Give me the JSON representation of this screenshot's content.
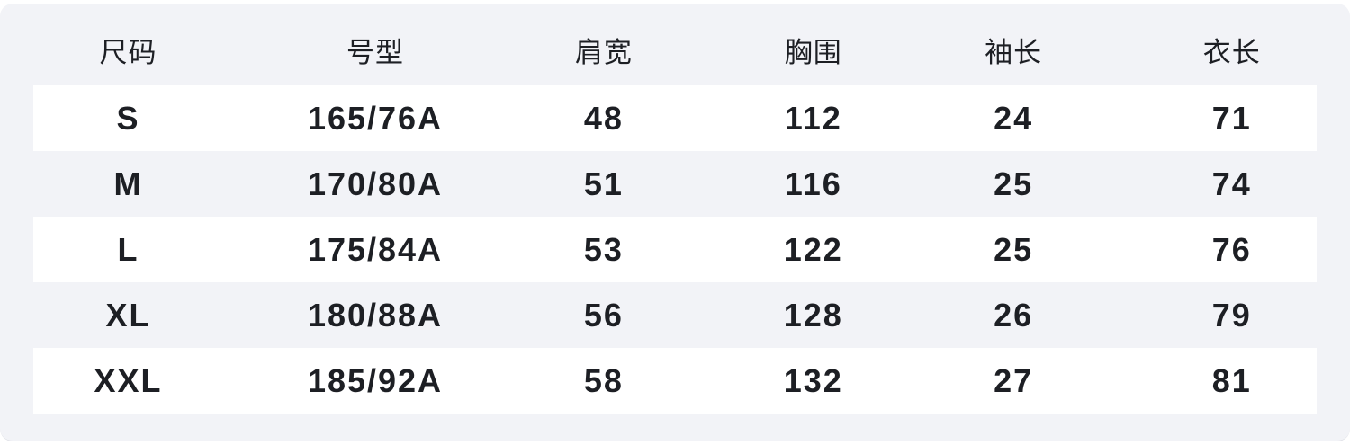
{
  "chart_data": {
    "type": "table",
    "columns": [
      "尺码",
      "号型",
      "肩宽",
      "胸围",
      "袖长",
      "衣长"
    ],
    "rows": [
      [
        "S",
        "165/76A",
        "48",
        "112",
        "24",
        "71"
      ],
      [
        "M",
        "170/80A",
        "51",
        "116",
        "25",
        "74"
      ],
      [
        "L",
        "175/84A",
        "53",
        "122",
        "25",
        "76"
      ],
      [
        "XL",
        "180/88A",
        "56",
        "128",
        "26",
        "79"
      ],
      [
        "XXL",
        "185/92A",
        "58",
        "132",
        "27",
        "81"
      ]
    ],
    "layout": {
      "striped_rows": "white stripes on rows 1,3,5 (S, L, XXL); panel background on header and rows 2,4",
      "alignment": "center"
    }
  },
  "colors": {
    "panel_bg": "#f2f3f7",
    "stripe_bg": "#ffffff",
    "text": "#1d1f24"
  }
}
